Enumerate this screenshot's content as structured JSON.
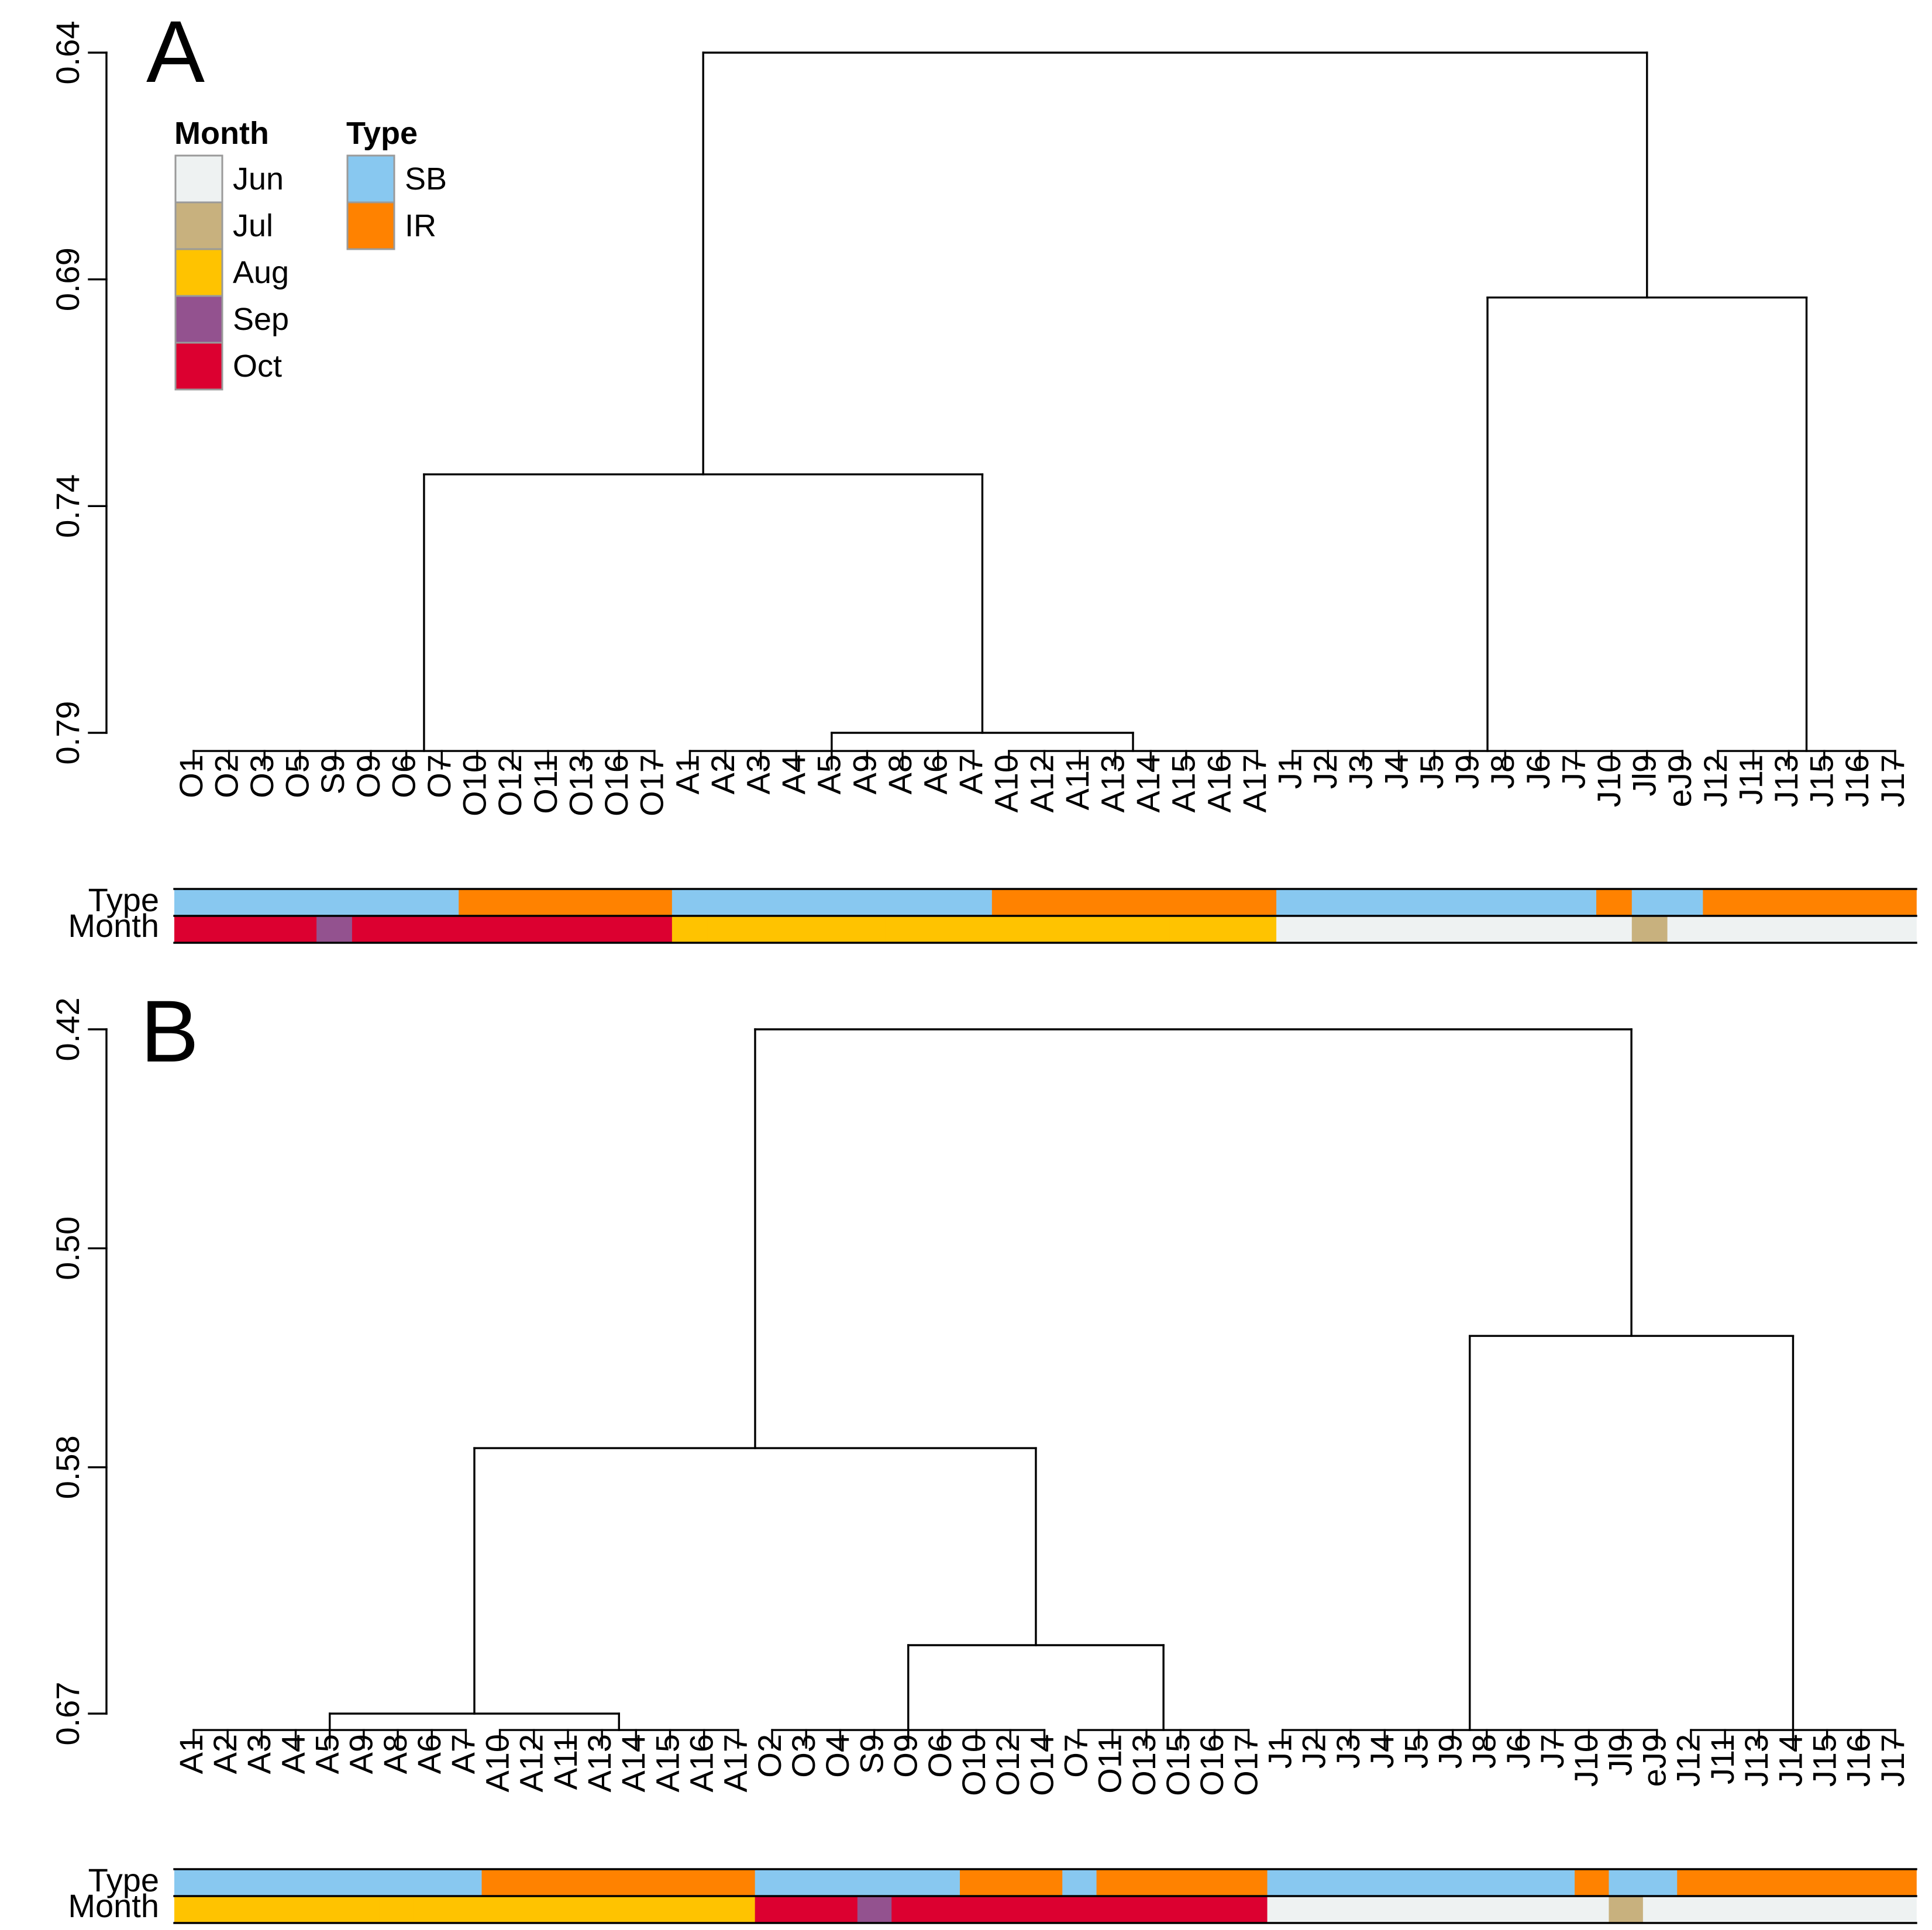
{
  "colors": {
    "Jun": "#EEF2F2",
    "Jul": "#C8B17E",
    "Aug": "#FFC300",
    "Sep": "#93528F",
    "Oct": "#DC0030",
    "SB": "#88C8F0",
    "IR": "#FF8200",
    "line": "#000000"
  },
  "legend": {
    "month_title": "Month",
    "months": [
      "Jun",
      "Jul",
      "Aug",
      "Sep",
      "Oct"
    ],
    "type_title": "Type",
    "types": [
      "SB",
      "IR"
    ]
  },
  "panels": [
    {
      "label": "A",
      "row_labels": {
        "type": "Type",
        "month": "Month"
      },
      "y_ticks": [
        "0.64",
        "0.69",
        "0.74",
        "0.79"
      ],
      "y_tick_values": [
        0.64,
        0.69,
        0.74,
        0.79
      ],
      "y_range": [
        0.64,
        0.79
      ],
      "baseline": 0.794,
      "leaves": [
        "O1",
        "O2",
        "O3",
        "O5",
        "S9",
        "O9",
        "O6",
        "O7",
        "O10",
        "O12",
        "O11",
        "O13",
        "O16",
        "O17",
        "A1",
        "A2",
        "A3",
        "A4",
        "A5",
        "A9",
        "A8",
        "A6",
        "A7",
        "A10",
        "A12",
        "A11",
        "A13",
        "A14",
        "A15",
        "A16",
        "A17",
        "J1",
        "J2",
        "J3",
        "J4",
        "J5",
        "J9",
        "J8",
        "J6",
        "J7",
        "J10",
        "Jl9",
        "eJ9",
        "J12",
        "J11",
        "J13",
        "J15",
        "J16",
        "J17"
      ],
      "leaf_type": [
        "SB",
        "SB",
        "SB",
        "SB",
        "SB",
        "SB",
        "SB",
        "SB",
        "IR",
        "IR",
        "IR",
        "IR",
        "IR",
        "IR",
        "SB",
        "SB",
        "SB",
        "SB",
        "SB",
        "SB",
        "SB",
        "SB",
        "SB",
        "IR",
        "IR",
        "IR",
        "IR",
        "IR",
        "IR",
        "IR",
        "IR",
        "SB",
        "SB",
        "SB",
        "SB",
        "SB",
        "SB",
        "SB",
        "SB",
        "SB",
        "IR",
        "SB",
        "SB",
        "IR",
        "IR",
        "IR",
        "IR",
        "IR",
        "IR"
      ],
      "leaf_month": [
        "Oct",
        "Oct",
        "Oct",
        "Oct",
        "Sep",
        "Oct",
        "Oct",
        "Oct",
        "Oct",
        "Oct",
        "Oct",
        "Oct",
        "Oct",
        "Oct",
        "Aug",
        "Aug",
        "Aug",
        "Aug",
        "Aug",
        "Aug",
        "Aug",
        "Aug",
        "Aug",
        "Aug",
        "Aug",
        "Aug",
        "Aug",
        "Aug",
        "Aug",
        "Aug",
        "Aug",
        "Jun",
        "Jun",
        "Jun",
        "Jun",
        "Jun",
        "Jun",
        "Jun",
        "Jun",
        "Jun",
        "Jun",
        "Jul",
        "Jun",
        "Jun",
        "Jun",
        "Jun",
        "Jun",
        "Jun",
        "Jun"
      ],
      "clusters": [
        {
          "from": 0,
          "to": 13,
          "height": 0.794
        },
        {
          "from": 14,
          "to": 22,
          "height": 0.794
        },
        {
          "from": 23,
          "to": 30,
          "height": 0.794
        },
        {
          "from": 31,
          "to": 42,
          "height": 0.794
        },
        {
          "from": 43,
          "to": 48,
          "height": 0.794
        }
      ],
      "merges": [
        {
          "a": 1,
          "b": 2,
          "height": 0.79
        },
        {
          "a": 0,
          "b": 5,
          "height": 0.733
        },
        {
          "a": 3,
          "b": 4,
          "height": 0.694
        },
        {
          "a": 6,
          "b": 7,
          "height": 0.64
        }
      ]
    },
    {
      "label": "B",
      "row_labels": {
        "type": "Type",
        "month": "Month"
      },
      "y_ticks": [
        "0.42",
        "0.50",
        "0.58",
        "0.67"
      ],
      "y_tick_values": [
        0.42,
        0.5,
        0.58,
        0.67
      ],
      "y_range": [
        0.42,
        0.67
      ],
      "baseline": 0.676,
      "leaves": [
        "A1",
        "A2",
        "A3",
        "A4",
        "A5",
        "A9",
        "A8",
        "A6",
        "A7",
        "A10",
        "A12",
        "A11",
        "A13",
        "A14",
        "A15",
        "A16",
        "A17",
        "O2",
        "O3",
        "O4",
        "S9",
        "O9",
        "O6",
        "O10",
        "O12",
        "O14",
        "O7",
        "O11",
        "O13",
        "O15",
        "O16",
        "O17",
        "J1",
        "J2",
        "J3",
        "J4",
        "J5",
        "J9",
        "J8",
        "J6",
        "J7",
        "J10",
        "Jl9",
        "eJ9",
        "J12",
        "J11",
        "J13",
        "J14",
        "J15",
        "J16",
        "J17"
      ],
      "leaf_type": [
        "SB",
        "SB",
        "SB",
        "SB",
        "SB",
        "SB",
        "SB",
        "SB",
        "SB",
        "IR",
        "IR",
        "IR",
        "IR",
        "IR",
        "IR",
        "IR",
        "IR",
        "SB",
        "SB",
        "SB",
        "SB",
        "SB",
        "SB",
        "IR",
        "IR",
        "IR",
        "SB",
        "IR",
        "IR",
        "IR",
        "IR",
        "IR",
        "SB",
        "SB",
        "SB",
        "SB",
        "SB",
        "SB",
        "SB",
        "SB",
        "SB",
        "IR",
        "SB",
        "SB",
        "IR",
        "IR",
        "IR",
        "IR",
        "IR",
        "IR",
        "IR"
      ],
      "leaf_month": [
        "Aug",
        "Aug",
        "Aug",
        "Aug",
        "Aug",
        "Aug",
        "Aug",
        "Aug",
        "Aug",
        "Aug",
        "Aug",
        "Aug",
        "Aug",
        "Aug",
        "Aug",
        "Aug",
        "Aug",
        "Oct",
        "Oct",
        "Oct",
        "Sep",
        "Oct",
        "Oct",
        "Oct",
        "Oct",
        "Oct",
        "Oct",
        "Oct",
        "Oct",
        "Oct",
        "Oct",
        "Oct",
        "Jun",
        "Jun",
        "Jun",
        "Jun",
        "Jun",
        "Jun",
        "Jun",
        "Jun",
        "Jun",
        "Jun",
        "Jul",
        "Jun",
        "Jun",
        "Jun",
        "Jun",
        "Jun",
        "Jun",
        "Jun",
        "Jun"
      ],
      "clusters": [
        {
          "from": 0,
          "to": 8,
          "height": 0.676
        },
        {
          "from": 9,
          "to": 16,
          "height": 0.676
        },
        {
          "from": 17,
          "to": 25,
          "height": 0.676
        },
        {
          "from": 26,
          "to": 31,
          "height": 0.676
        },
        {
          "from": 32,
          "to": 43,
          "height": 0.676
        },
        {
          "from": 44,
          "to": 50,
          "height": 0.676
        }
      ],
      "merges": [
        {
          "a": 0,
          "b": 1,
          "height": 0.67
        },
        {
          "a": 2,
          "b": 3,
          "height": 0.645
        },
        {
          "a": 6,
          "b": 7,
          "height": 0.573
        },
        {
          "a": 4,
          "b": 5,
          "height": 0.532
        },
        {
          "a": 8,
          "b": 9,
          "height": 0.42
        }
      ]
    }
  ]
}
